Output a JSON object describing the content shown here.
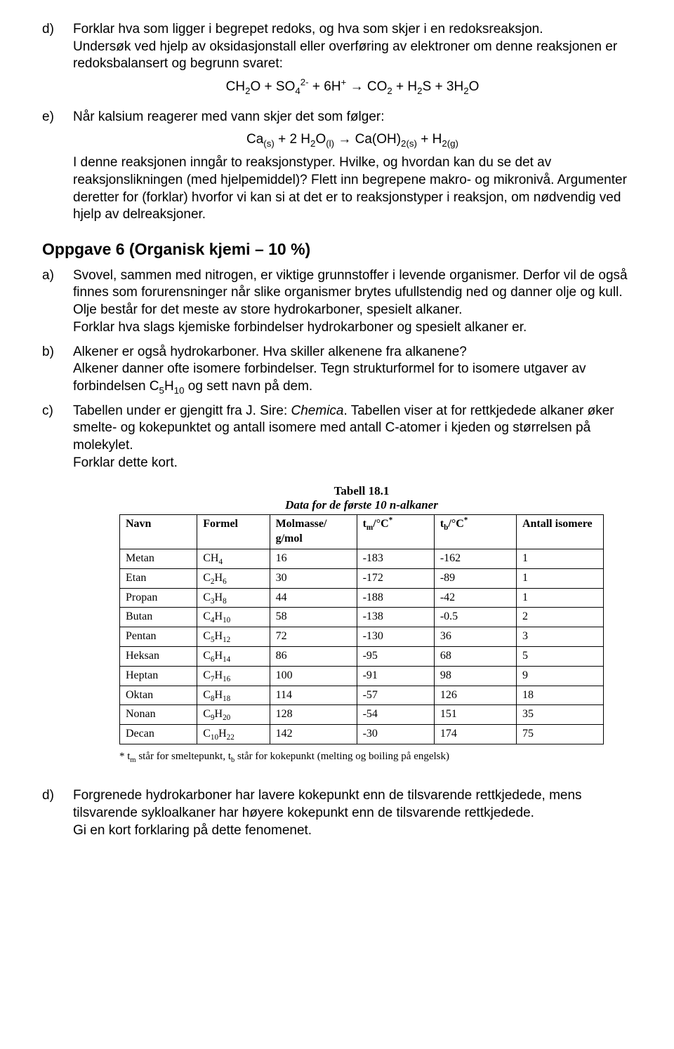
{
  "items": [
    {
      "label": "d)",
      "para1": "Forklar hva som ligger i begrepet redoks, og hva som skjer i en redoksreaksjon.",
      "para2": "Undersøk ved hjelp av oksidasjonstall eller overføring av elektroner om denne reaksjonen er redoksbalansert og begrunn svaret:"
    },
    {
      "label": "e)",
      "para1": "Når kalsium reagerer med vann skjer det som følger:",
      "para2": "I denne reaksjonen inngår to reaksjonstyper. Hvilke, og hvordan kan du se det av reaksjonslikningen (med hjelpemiddel)? Flett inn begrepene makro- og mikronivå. Argumenter deretter for (forklar) hvorfor vi kan si at det er to reaksjonstyper i reaksjon, om nødvendig ved hjelp av delreaksjoner."
    }
  ],
  "eq1_parts": {
    "p0": "CH",
    "p1": "O   +   SO",
    "p2": "   +   6H",
    "p3": "   →   CO",
    "p4": "   +   H",
    "p5": "S   + 3H",
    "p6": "O"
  },
  "eq2_parts": {
    "p0": "Ca",
    "p1": " + 2 H",
    "p2": "O",
    "p3": "   →   Ca(OH)",
    "p4": "  +  H"
  },
  "heading6": "Oppgave 6 (Organisk kjemi – 10 %)",
  "q6": {
    "a": {
      "label": "a)",
      "p1": "Svovel, sammen med nitrogen, er viktige grunnstoffer i levende organismer. Derfor vil de også finnes som forurensninger når slike organismer brytes ufullstendig ned og danner olje og kull. Olje består for det meste av store hydrokarboner, spesielt alkaner.",
      "p2": "Forklar hva slags kjemiske forbindelser hydrokarboner og spesielt alkaner er."
    },
    "b": {
      "label": "b)",
      "p1": "Alkener er også hydrokarboner. Hva skiller alkenene fra alkanene?",
      "p2_a": "Alkener danner ofte isomere forbindelser. Tegn strukturformel for to isomere utgaver av forbindelsen C",
      "p2_b": " og sett navn på dem."
    },
    "c": {
      "label": "c)",
      "p1_a": "Tabellen under er gjengitt fra J. Sire: ",
      "p1_italic": "Chemica",
      "p1_b": ". Tabellen viser at for rettkjedede alkaner øker smelte- og kokepunktet og antall isomere med antall C-atomer i kjeden og størrelsen på molekylet.",
      "p2": "Forklar dette kort."
    },
    "d": {
      "label": "d)",
      "p1": "Forgrenede hydrokarboner har lavere kokepunkt enn de tilsvarende rettkjedede, mens tilsvarende sykloalkaner har høyere kokepunkt enn de tilsvarende rettkjedede.",
      "p2": "Gi en kort forklaring på dette fenomenet."
    }
  },
  "table": {
    "title_l1": "Tabell 18.1",
    "title_l2": "Data for de første 10 n-alkaner",
    "headers": [
      "Navn",
      "Formel",
      "Molmasse/ g/mol",
      "t_m/°C*",
      "t_b/°C*",
      "Antall isomere"
    ],
    "col_widths": [
      "16%",
      "15%",
      "18%",
      "16%",
      "17%",
      "18%"
    ],
    "rows": [
      {
        "navn": "Metan",
        "formel_base": "CH",
        "formel_sub": "4",
        "mol": "16",
        "tm": "-183",
        "tb": "-162",
        "iso": "1"
      },
      {
        "navn": "Etan",
        "formel_base": "C",
        "formel_sub": "2",
        "formel_mid": "H",
        "formel_sub2": "6",
        "mol": "30",
        "tm": "-172",
        "tb": "-89",
        "iso": "1"
      },
      {
        "navn": "Propan",
        "formel_base": "C",
        "formel_sub": "3",
        "formel_mid": "H",
        "formel_sub2": "8",
        "mol": "44",
        "tm": "-188",
        "tb": "-42",
        "iso": "1"
      },
      {
        "navn": "Butan",
        "formel_base": "C",
        "formel_sub": "4",
        "formel_mid": "H",
        "formel_sub2": "10",
        "mol": "58",
        "tm": "-138",
        "tb": "-0.5",
        "iso": "2"
      },
      {
        "navn": "Pentan",
        "formel_base": "C",
        "formel_sub": "5",
        "formel_mid": "H",
        "formel_sub2": "12",
        "mol": "72",
        "tm": "-130",
        "tb": "36",
        "iso": "3"
      },
      {
        "navn": "Heksan",
        "formel_base": "C",
        "formel_sub": "6",
        "formel_mid": "H",
        "formel_sub2": "14",
        "mol": "86",
        "tm": "-95",
        "tb": "68",
        "iso": "5"
      },
      {
        "navn": "Heptan",
        "formel_base": "C",
        "formel_sub": "7",
        "formel_mid": "H",
        "formel_sub2": "16",
        "mol": "100",
        "tm": "-91",
        "tb": "98",
        "iso": "9"
      },
      {
        "navn": "Oktan",
        "formel_base": "C",
        "formel_sub": "8",
        "formel_mid": "H",
        "formel_sub2": "18",
        "mol": "114",
        "tm": "-57",
        "tb": "126",
        "iso": "18"
      },
      {
        "navn": "Nonan",
        "formel_base": "C",
        "formel_sub": "9",
        "formel_mid": "H",
        "formel_sub2": "20",
        "mol": "128",
        "tm": "-54",
        "tb": "151",
        "iso": "35"
      },
      {
        "navn": "Decan",
        "formel_base": "C",
        "formel_sub": "10",
        "formel_mid": "H",
        "formel_sub2": "22",
        "mol": "142",
        "tm": "-30",
        "tb": "174",
        "iso": "75"
      }
    ],
    "footnote_a": "* t",
    "footnote_b": " står for smeltepunkt, t",
    "footnote_c": " står for kokepunkt (melting og boiling på engelsk)"
  }
}
